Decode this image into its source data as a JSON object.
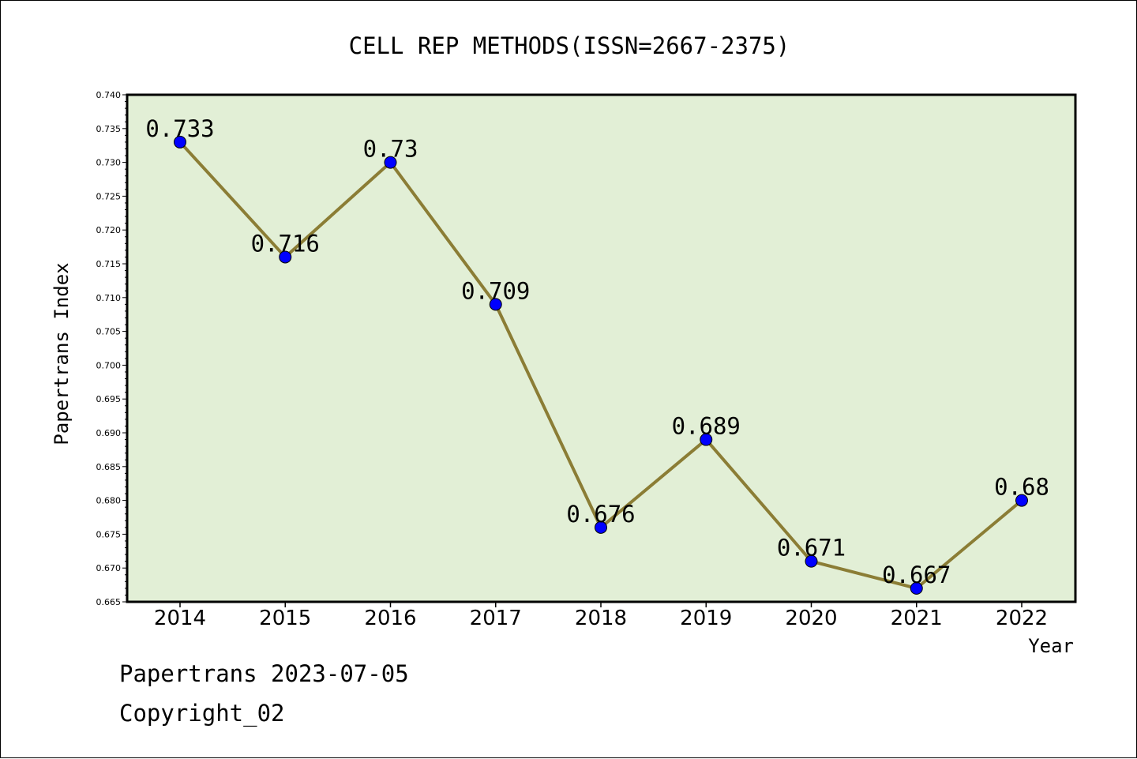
{
  "colors": {
    "plot_background": "#e2efd6",
    "line": "#8b7d35",
    "marker": "#0000ff",
    "frame": "#000000"
  },
  "chart_data": {
    "type": "line",
    "title": "CELL REP METHODS(ISSN=2667-2375)",
    "xlabel": "Year",
    "ylabel": "Papertrans Index",
    "categories": [
      "2014",
      "2015",
      "2016",
      "2017",
      "2018",
      "2019",
      "2020",
      "2021",
      "2022"
    ],
    "series": [
      {
        "values": [
          0.733,
          0.716,
          0.73,
          0.709,
          0.676,
          0.689,
          0.671,
          0.667,
          0.68
        ],
        "labels": [
          "0.733",
          "0.716",
          "0.73",
          "0.709",
          "0.676",
          "0.689",
          "0.671",
          "0.667",
          "0.68"
        ]
      }
    ],
    "ylim": [
      0.665,
      0.74
    ],
    "yticks": [
      "0.665",
      "0.670",
      "0.675",
      "0.680",
      "0.685",
      "0.690",
      "0.695",
      "0.700",
      "0.705",
      "0.710",
      "0.715",
      "0.720",
      "0.725",
      "0.730",
      "0.735",
      "0.740"
    ],
    "grid": false,
    "legend": "none"
  },
  "footer": {
    "date_line": "Papertrans 2023-07-05",
    "copyright_line": "Copyright_02"
  }
}
